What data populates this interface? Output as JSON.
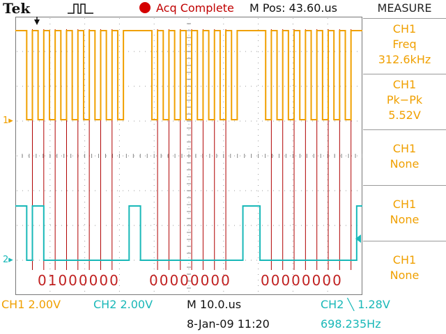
{
  "header": {
    "brand": "Tek",
    "trigger_icon": "pulse-icon",
    "acq_status": "Acq Complete",
    "m_pos": "M Pos: 43.60.us"
  },
  "measure": {
    "title": "MEASURE",
    "slots": [
      {
        "ch": "CH1",
        "label": "Freq",
        "value": "312.6kHz"
      },
      {
        "ch": "CH1",
        "label": "Pk−Pk",
        "value": "5.52V"
      },
      {
        "ch": "CH1",
        "label": "None",
        "value": ""
      },
      {
        "ch": "CH1",
        "label": "None",
        "value": ""
      },
      {
        "ch": "CH1",
        "label": "None",
        "value": ""
      }
    ]
  },
  "screen": {
    "ch1_marker": "1",
    "ch2_marker": "2",
    "decoded": [
      "01000000",
      "00000000",
      "00000000"
    ],
    "ch1_bits": "1101010101010101010111110101010101010101111101010101010101011",
    "ch2_bits": "1101100000000000000011000000000000000000111000000000000000001"
  },
  "footer": {
    "ch1_scale": "CH1  2.00V",
    "ch2_scale": "CH2  2.00V",
    "m_time": "M 10.0.us",
    "trigger": "CH2 ╲ 1.28V",
    "date_time": "8-Jan-09 11:20",
    "frequency": "698.235Hz"
  },
  "colors": {
    "ch1": "#f0a000",
    "ch2": "#19b8b8",
    "markers": "#b00000",
    "status_dot": "#d40000"
  }
}
